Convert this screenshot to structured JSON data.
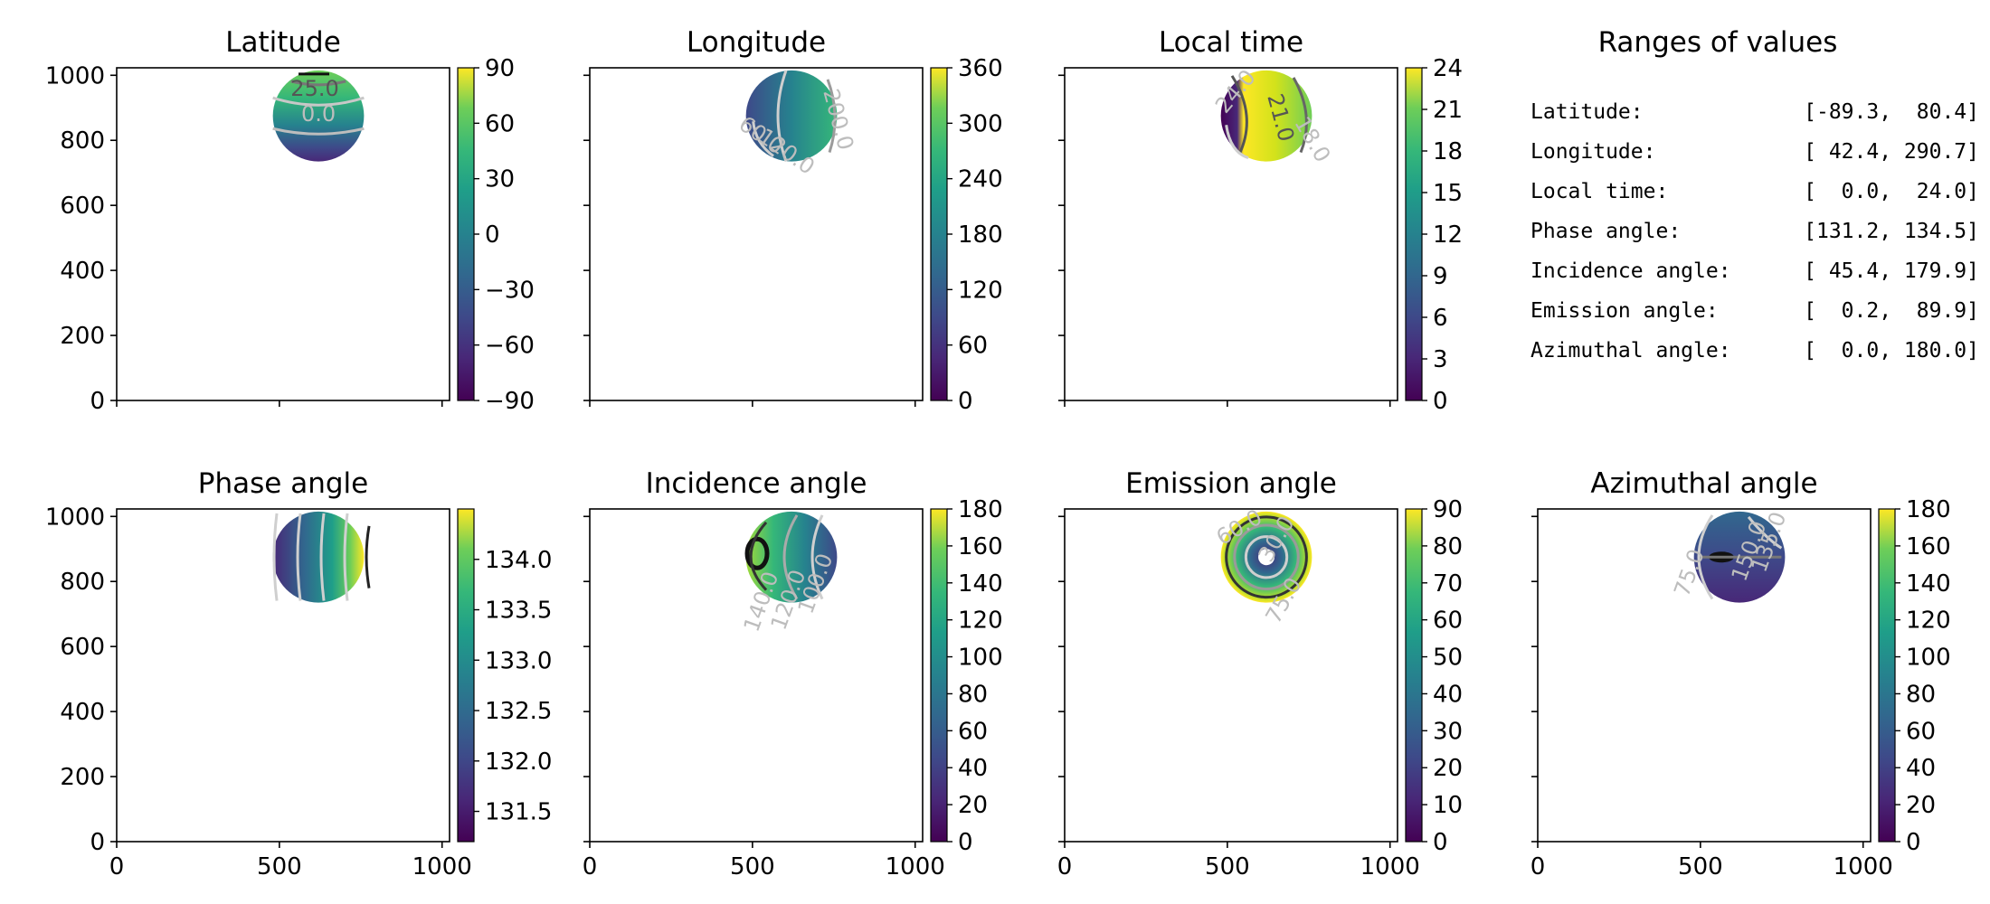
{
  "panels": [
    {
      "id": "latitude",
      "title": "Latitude",
      "cbar_ticks": [
        "90",
        "60",
        "30",
        "0",
        "−30",
        "−60",
        "−90"
      ],
      "cbar_range": [
        -90,
        90
      ],
      "contours": [
        "25.0",
        "0.0"
      ]
    },
    {
      "id": "longitude",
      "title": "Longitude",
      "cbar_ticks": [
        "360",
        "300",
        "240",
        "180",
        "120",
        "60",
        "0"
      ],
      "cbar_range": [
        0,
        360
      ],
      "contours": [
        "60.0",
        "120.0",
        "200.0"
      ]
    },
    {
      "id": "local-time",
      "title": "Local time",
      "cbar_ticks": [
        "24",
        "21",
        "18",
        "15",
        "12",
        "9",
        "6",
        "3",
        "0"
      ],
      "cbar_range": [
        0,
        24
      ],
      "contours": [
        "21.0",
        "18.0",
        "24.0"
      ]
    },
    {
      "id": "phase-angle",
      "title": "Phase angle",
      "cbar_ticks": [
        "134.0",
        "133.5",
        "133.0",
        "132.5",
        "132.0",
        "131.5"
      ],
      "cbar_range": [
        131.2,
        134.5
      ],
      "contours": []
    },
    {
      "id": "incidence-angle",
      "title": "Incidence angle",
      "cbar_ticks": [
        "180",
        "160",
        "140",
        "120",
        "100",
        "80",
        "60",
        "40",
        "20",
        "0"
      ],
      "cbar_range": [
        0,
        180
      ],
      "contours": [
        "140.0",
        "120.0",
        "100.0"
      ]
    },
    {
      "id": "emission-angle",
      "title": "Emission angle",
      "cbar_ticks": [
        "90",
        "80",
        "70",
        "60",
        "50",
        "40",
        "30",
        "20",
        "10",
        "0"
      ],
      "cbar_range": [
        0,
        90
      ],
      "contours": [
        "60.0",
        "30.0",
        "75.0"
      ]
    },
    {
      "id": "azimuthal-angle",
      "title": "Azimuthal angle",
      "cbar_ticks": [
        "180",
        "160",
        "140",
        "120",
        "100",
        "80",
        "60",
        "40",
        "20",
        "0"
      ],
      "cbar_range": [
        0,
        180
      ],
      "contours": [
        "75.0",
        "150.0",
        "135.0"
      ]
    }
  ],
  "axis": {
    "y_ticks": [
      "1000",
      "800",
      "600",
      "400",
      "200",
      "0"
    ],
    "x_ticks": [
      "0",
      "500",
      "1000"
    ]
  },
  "ranges": {
    "title": "Ranges of values",
    "rows": [
      {
        "label": "Latitude:",
        "value": "[-89.3,  80.4]"
      },
      {
        "label": "Longitude:",
        "value": "[ 42.4, 290.7]"
      },
      {
        "label": "Local time:",
        "value": "[  0.0,  24.0]"
      },
      {
        "label": "Phase angle:",
        "value": "[131.2, 134.5]"
      },
      {
        "label": "Incidence angle:",
        "value": "[ 45.4, 179.9]"
      },
      {
        "label": "Emission angle:",
        "value": "[  0.2,  89.9]"
      },
      {
        "label": "Azimuthal angle:",
        "value": "[  0.0, 180.0]"
      }
    ]
  },
  "chart_data": {
    "type": "heatmap",
    "layout": "2x4 grid of image panels with colorbars",
    "x_range": [
      0,
      1023
    ],
    "y_range": [
      0,
      1023
    ],
    "disc": {
      "center_x": 620,
      "center_y": 875,
      "radius": 140
    },
    "colormap": "viridis",
    "colors": {
      "viridis_low": "#440154",
      "viridis_mid": "#21918c",
      "viridis_high": "#fde725"
    },
    "series": [
      {
        "name": "Latitude",
        "range": [
          -89.3,
          80.4
        ]
      },
      {
        "name": "Longitude",
        "range": [
          42.4,
          290.7
        ]
      },
      {
        "name": "Local time",
        "range": [
          0.0,
          24.0
        ]
      },
      {
        "name": "Phase angle",
        "range": [
          131.2,
          134.5
        ]
      },
      {
        "name": "Incidence angle",
        "range": [
          45.4,
          179.9
        ]
      },
      {
        "name": "Emission angle",
        "range": [
          0.2,
          89.9
        ]
      },
      {
        "name": "Azimuthal angle",
        "range": [
          0.0,
          180.0
        ]
      }
    ]
  }
}
